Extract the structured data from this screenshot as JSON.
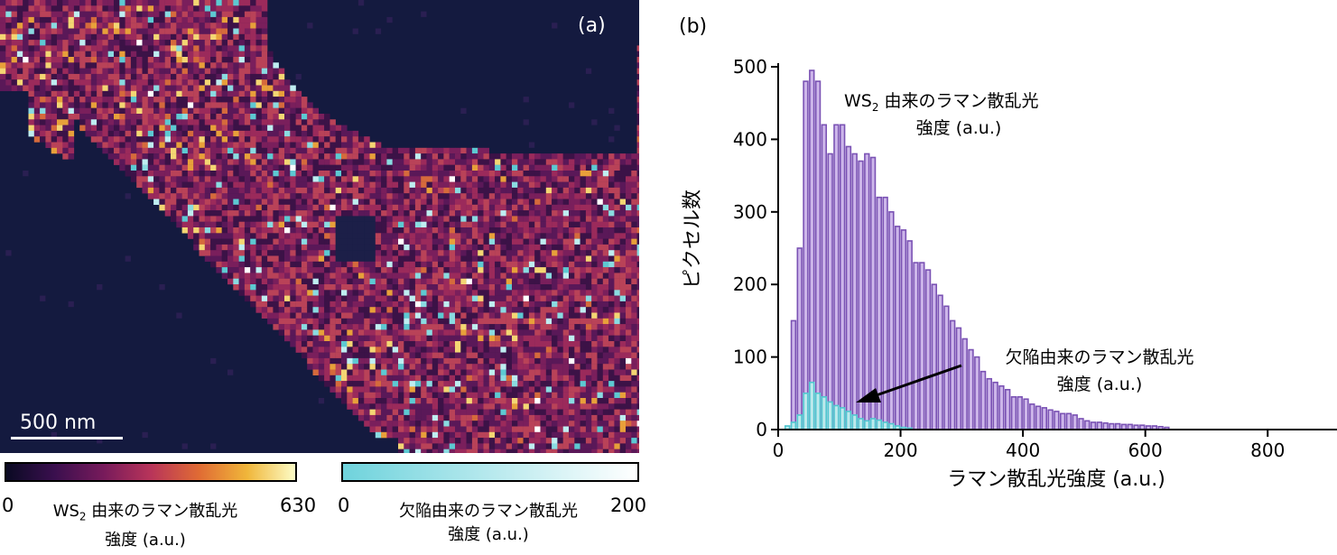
{
  "panel_a": {
    "label": "(a)",
    "scale_bar": "500 nm"
  },
  "colorbars": [
    {
      "name": "ws2",
      "min": "0",
      "max": "630",
      "label_main": "WS",
      "label_sub": "2",
      "label_rest": " 由来のラマン散乱光",
      "label_line2": "強度 (a.u.)",
      "colors": [
        "#0a0a23",
        "#3a0f4e",
        "#761a5b",
        "#b8345a",
        "#e06b34",
        "#f0b63a",
        "#fcfcc6"
      ]
    },
    {
      "name": "defect",
      "min": "0",
      "max": "200",
      "label_main": "欠陥由来のラマン散乱光",
      "label_line2": "強度 (a.u.)",
      "colors": [
        "#6fd3dc",
        "#ffffff"
      ]
    }
  ],
  "chart_data": {
    "type": "bar",
    "panel_label": "(b)",
    "xlabel": "ラマン散乱光強度 (a.u.)",
    "ylabel": "ピクセル数",
    "xlim": [
      0,
      900
    ],
    "ylim": [
      0,
      500
    ],
    "xticks": [
      0,
      200,
      400,
      600,
      800
    ],
    "yticks": [
      0,
      100,
      200,
      300,
      400,
      500
    ],
    "bin_width": 10,
    "grid": false,
    "series": [
      {
        "name_main": "WS",
        "name_sub": "2",
        "name_rest": " 由来のラマン散乱光",
        "name_line2": "強度 (a.u.)",
        "color": "#7a52b4",
        "fill": "#cdb6ea",
        "bins_start": [
          20,
          30,
          40,
          50,
          60,
          70,
          80,
          90,
          100,
          110,
          120,
          130,
          140,
          150,
          160,
          170,
          180,
          190,
          200,
          210,
          220,
          230,
          240,
          250,
          260,
          270,
          280,
          290,
          300,
          310,
          320,
          330,
          340,
          350,
          360,
          370,
          380,
          390,
          400,
          410,
          420,
          430,
          440,
          450,
          460,
          470,
          480,
          490,
          500,
          510,
          520,
          530,
          540,
          550,
          560,
          570,
          580,
          590,
          600,
          610,
          620,
          630
        ],
        "values": [
          150,
          250,
          480,
          495,
          480,
          420,
          380,
          420,
          420,
          390,
          380,
          370,
          380,
          375,
          320,
          320,
          300,
          280,
          275,
          260,
          230,
          230,
          220,
          200,
          185,
          170,
          150,
          140,
          125,
          110,
          100,
          80,
          70,
          65,
          60,
          55,
          45,
          45,
          42,
          35,
          32,
          30,
          27,
          25,
          22,
          22,
          20,
          15,
          12,
          10,
          10,
          9,
          8,
          8,
          7,
          7,
          6,
          6,
          5,
          5,
          4,
          3
        ]
      },
      {
        "name_main": "欠陥由来のラマン散乱光",
        "name_line2": "強度 (a.u.)",
        "color": "#4fc6cf",
        "fill": "#bde9ec",
        "bins_start": [
          10,
          20,
          30,
          40,
          50,
          60,
          70,
          80,
          90,
          100,
          110,
          120,
          130,
          140,
          150,
          160,
          170,
          180,
          190,
          200,
          210
        ],
        "values": [
          5,
          10,
          20,
          50,
          65,
          50,
          45,
          38,
          33,
          30,
          25,
          20,
          15,
          12,
          15,
          13,
          10,
          8,
          5,
          3,
          2
        ]
      }
    ]
  }
}
